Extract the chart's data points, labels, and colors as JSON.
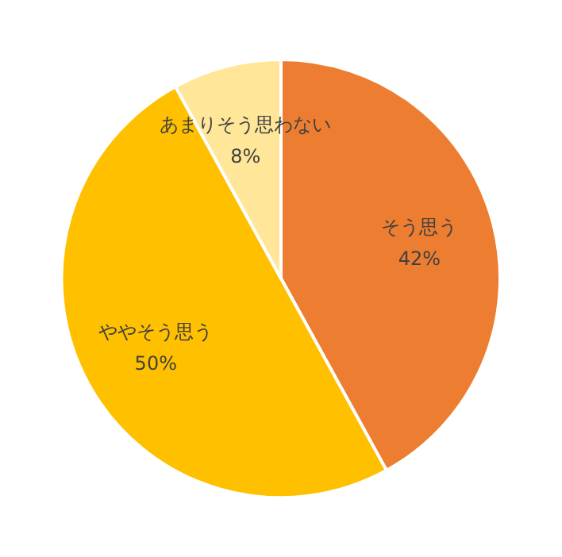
{
  "chart_data": {
    "type": "pie",
    "categories": [
      "そう思う",
      "ややそう思う",
      "あまりそう思わない"
    ],
    "values": [
      42,
      50,
      8
    ],
    "colors": [
      "#ed7d31",
      "#ffc000",
      "#ffe699"
    ],
    "value_labels": [
      "42%",
      "50%",
      "8%"
    ]
  }
}
